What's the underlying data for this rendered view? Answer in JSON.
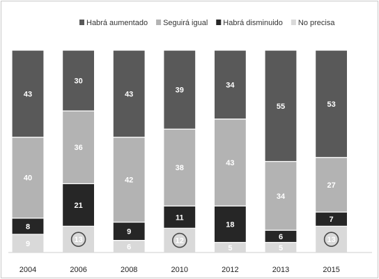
{
  "chart_data": {
    "type": "bar",
    "stacked": true,
    "normalized": true,
    "categories": [
      "2004",
      "2006",
      "2008",
      "2010",
      "2012",
      "2013",
      "2015"
    ],
    "series": [
      {
        "name": "No precisa",
        "values": [
          9,
          13,
          6,
          12,
          5,
          5,
          13
        ],
        "color": "#d9d9d9",
        "label_color": "#ffffff"
      },
      {
        "name": "Habrá disminuido",
        "values": [
          8,
          21,
          9,
          11,
          18,
          6,
          7
        ],
        "color": "#262626",
        "label_color": "#ffffff"
      },
      {
        "name": "Seguirá igual",
        "values": [
          40,
          36,
          42,
          38,
          43,
          34,
          27
        ],
        "color": "#b3b3b3",
        "label_color": "#ffffff"
      },
      {
        "name": "Habrá aumentado",
        "values": [
          43,
          30,
          43,
          39,
          34,
          55,
          53
        ],
        "color": "#595959",
        "label_color": "#ffffff"
      }
    ],
    "legend_order": [
      "Habrá aumentado",
      "Seguirá igual",
      "Habrá disminuido",
      "No precisa"
    ],
    "circled": [
      {
        "category": "2006",
        "series": "No precisa"
      },
      {
        "category": "2010",
        "series": "No precisa"
      },
      {
        "category": "2015",
        "series": "No precisa"
      }
    ],
    "legend_position": "top",
    "grid": false,
    "ylim": [
      0,
      100
    ]
  }
}
